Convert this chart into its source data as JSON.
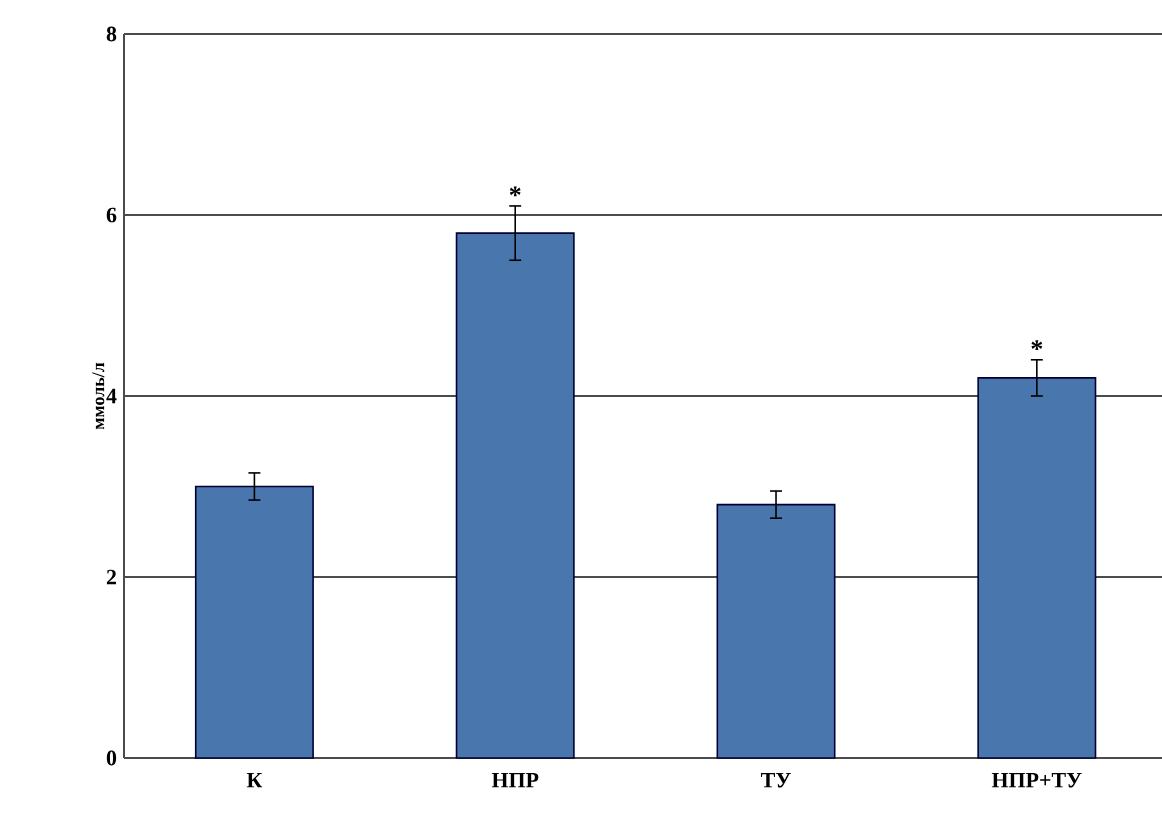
{
  "chart_data": {
    "type": "bar",
    "ylabel": "ммоль/л",
    "categories": [
      "К",
      "НПР",
      "ТУ",
      "НПР+ТУ"
    ],
    "values": [
      3.0,
      5.8,
      2.8,
      4.2
    ],
    "errors": [
      0.15,
      0.3,
      0.15,
      0.2
    ],
    "color": "#4a76ae",
    "ylim": [
      0,
      8
    ],
    "yticks": [
      0,
      2,
      4,
      6,
      8
    ],
    "grid": "y",
    "annotations": [
      {
        "text": "*",
        "x": "НПР",
        "y": 6.1
      },
      {
        "text": "*",
        "x": "НПР+ТУ",
        "y": 4.4
      }
    ]
  }
}
